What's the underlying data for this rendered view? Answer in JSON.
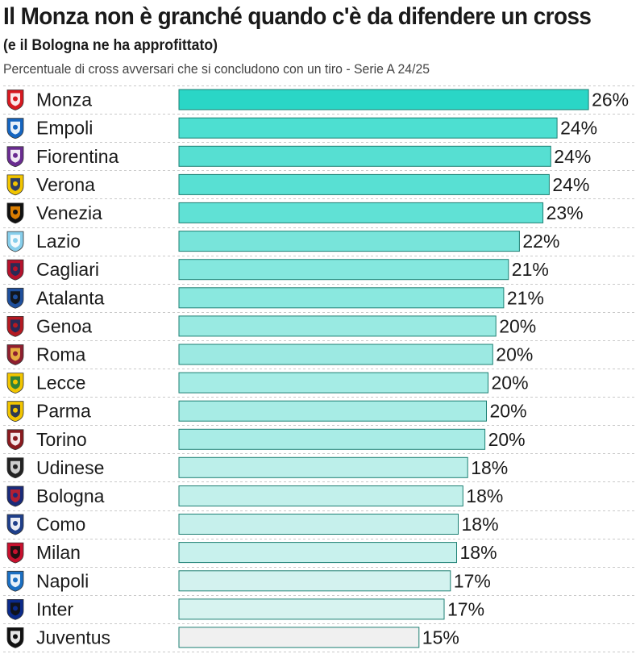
{
  "header": {
    "title": "Il Monza non è granché quando c'è da difendere un cross",
    "subtitle": "(e il Bologna ne ha approfittato)",
    "caption": "Percentuale di cross avversari che si concludono con un tiro - Serie A 24/25"
  },
  "chart_data": {
    "type": "bar",
    "orientation": "horizontal",
    "title": "Il Monza non è granché quando c'è da difendere un cross",
    "subtitle": "(e il Bologna ne ha approfittato)",
    "xlabel": "",
    "ylabel": "",
    "unit": "%",
    "xlim": [
      0,
      26.2
    ],
    "grid": false,
    "legend": "none",
    "categories": [
      "Monza",
      "Empoli",
      "Fiorentina",
      "Verona",
      "Venezia",
      "Lazio",
      "Cagliari",
      "Atalanta",
      "Genoa",
      "Roma",
      "Lecce",
      "Parma",
      "Torino",
      "Udinese",
      "Bologna",
      "Como",
      "Milan",
      "Napoli",
      "Inter",
      "Juventus"
    ],
    "values": [
      26.1,
      24.1,
      23.7,
      23.6,
      23.2,
      21.7,
      21.0,
      20.7,
      20.2,
      20.0,
      19.7,
      19.6,
      19.5,
      18.4,
      18.1,
      17.8,
      17.7,
      17.3,
      16.9,
      15.3
    ],
    "value_labels": [
      "26%",
      "24%",
      "24%",
      "24%",
      "23%",
      "22%",
      "21%",
      "21%",
      "20%",
      "20%",
      "20%",
      "20%",
      "20%",
      "18%",
      "18%",
      "18%",
      "18%",
      "17%",
      "17%",
      "15%"
    ],
    "bar_colors": [
      "#2ad6c6",
      "#4ddfd1",
      "#56dfd2",
      "#58e0d3",
      "#60e1d5",
      "#78e4da",
      "#84e7de",
      "#8ae8df",
      "#99eae2",
      "#9ce9e2",
      "#a5ece5",
      "#a7ece5",
      "#a9ece6",
      "#bcefea",
      "#c2f0eb",
      "#c6f0ec",
      "#c8f1ed",
      "#d3f2ef",
      "#d7f3f0",
      "#f0f0f0"
    ]
  },
  "crests": [
    {
      "team": "Monza",
      "icon": "monza-crest-icon",
      "primary": "#d71920",
      "secondary": "#ffffff"
    },
    {
      "team": "Empoli",
      "icon": "empoli-crest-icon",
      "primary": "#1565c0",
      "secondary": "#ffffff"
    },
    {
      "team": "Fiorentina",
      "icon": "fiorentina-crest-icon",
      "primary": "#6a2c91",
      "secondary": "#ffffff"
    },
    {
      "team": "Verona",
      "icon": "verona-crest-icon",
      "primary": "#f2c500",
      "secondary": "#1a2f6b"
    },
    {
      "team": "Venezia",
      "icon": "venezia-crest-icon",
      "primary": "#111111",
      "secondary": "#f08a00"
    },
    {
      "team": "Lazio",
      "icon": "lazio-crest-icon",
      "primary": "#87ceeb",
      "secondary": "#ffffff"
    },
    {
      "team": "Cagliari",
      "icon": "cagliari-crest-icon",
      "primary": "#b5122c",
      "secondary": "#1b2d5a"
    },
    {
      "team": "Atalanta",
      "icon": "atalanta-crest-icon",
      "primary": "#1e4f9c",
      "secondary": "#111111"
    },
    {
      "team": "Genoa",
      "icon": "genoa-crest-icon",
      "primary": "#b51a22",
      "secondary": "#1a2b5a"
    },
    {
      "team": "Roma",
      "icon": "roma-crest-icon",
      "primary": "#8e1f2f",
      "secondary": "#f0bc42"
    },
    {
      "team": "Lecce",
      "icon": "lecce-crest-icon",
      "primary": "#f2c500",
      "secondary": "#1c7a3e"
    },
    {
      "team": "Parma",
      "icon": "parma-crest-icon",
      "primary": "#f2c500",
      "secondary": "#1a2b5a"
    },
    {
      "team": "Torino",
      "icon": "torino-crest-icon",
      "primary": "#8a1a1f",
      "secondary": "#ffffff"
    },
    {
      "team": "Udinese",
      "icon": "udinese-crest-icon",
      "primary": "#222222",
      "secondary": "#e0e0e0"
    },
    {
      "team": "Bologna",
      "icon": "bologna-crest-icon",
      "primary": "#1a2b7a",
      "secondary": "#c21e2b"
    },
    {
      "team": "Como",
      "icon": "como-crest-icon",
      "primary": "#1f3f8a",
      "secondary": "#ffffff"
    },
    {
      "team": "Milan",
      "icon": "milan-crest-icon",
      "primary": "#c8102e",
      "secondary": "#111111"
    },
    {
      "team": "Napoli",
      "icon": "napoli-crest-icon",
      "primary": "#1b6fc2",
      "secondary": "#ffffff"
    },
    {
      "team": "Inter",
      "icon": "inter-crest-icon",
      "primary": "#0b2a8a",
      "secondary": "#111111"
    },
    {
      "team": "Juventus",
      "icon": "juventus-crest-icon",
      "primary": "#111111",
      "secondary": "#ffffff"
    }
  ]
}
